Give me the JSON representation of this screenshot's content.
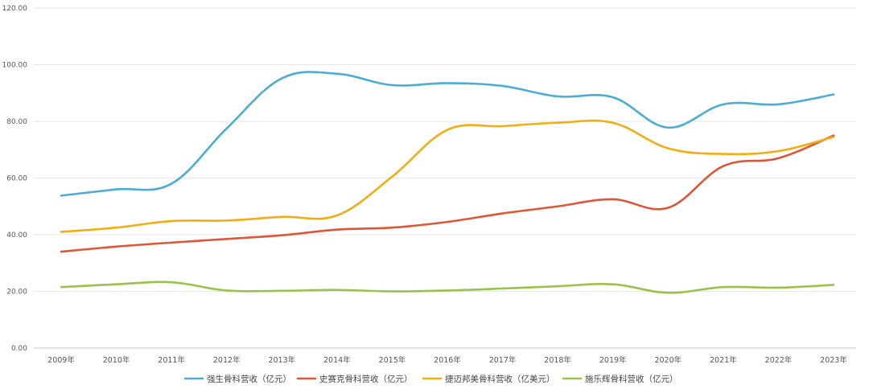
{
  "chart_data": {
    "type": "line",
    "title": "",
    "xlabel": "",
    "ylabel": "",
    "ylim": [
      0,
      120
    ],
    "yticks": [
      "0.00",
      "20.00",
      "40.00",
      "60.00",
      "80.00",
      "100.00",
      "120.00"
    ],
    "ytick_values": [
      0,
      20,
      40,
      60,
      80,
      100,
      120
    ],
    "categories": [
      "2009年",
      "2010年",
      "2011年",
      "2012年",
      "2013年",
      "2014年",
      "2015年",
      "2016年",
      "2017年",
      "2018年",
      "2019年",
      "2020年",
      "2021年",
      "2022年",
      "2023年"
    ],
    "grid": true,
    "legend_position": "bottom",
    "series": [
      {
        "name": "强生骨科营收（亿元）",
        "color": "#4badd4",
        "values": [
          53.8,
          56.0,
          58.0,
          77.5,
          95.2,
          96.8,
          92.8,
          93.5,
          92.5,
          88.8,
          88.5,
          77.8,
          86.0,
          86.0,
          89.5
        ]
      },
      {
        "name": "史赛克骨科营收（亿元）",
        "color": "#e05535",
        "values": [
          34.0,
          35.8,
          37.2,
          38.5,
          39.8,
          41.8,
          42.5,
          44.5,
          47.5,
          50.0,
          52.5,
          49.5,
          64.2,
          67.0,
          75.0
        ]
      },
      {
        "name": "捷迈邦美骨科营收（亿美元）",
        "color": "#f2ad12",
        "values": [
          41.0,
          42.5,
          44.8,
          45.0,
          46.3,
          46.8,
          60.5,
          77.0,
          78.3,
          79.5,
          79.5,
          70.5,
          68.5,
          69.5,
          74.5
        ]
      },
      {
        "name": "施乐辉骨科营收（亿元）",
        "color": "#99c24a",
        "values": [
          21.5,
          22.5,
          23.2,
          20.3,
          20.2,
          20.5,
          20.0,
          20.3,
          21.0,
          21.8,
          22.5,
          19.5,
          21.5,
          21.3,
          22.3
        ]
      }
    ]
  }
}
